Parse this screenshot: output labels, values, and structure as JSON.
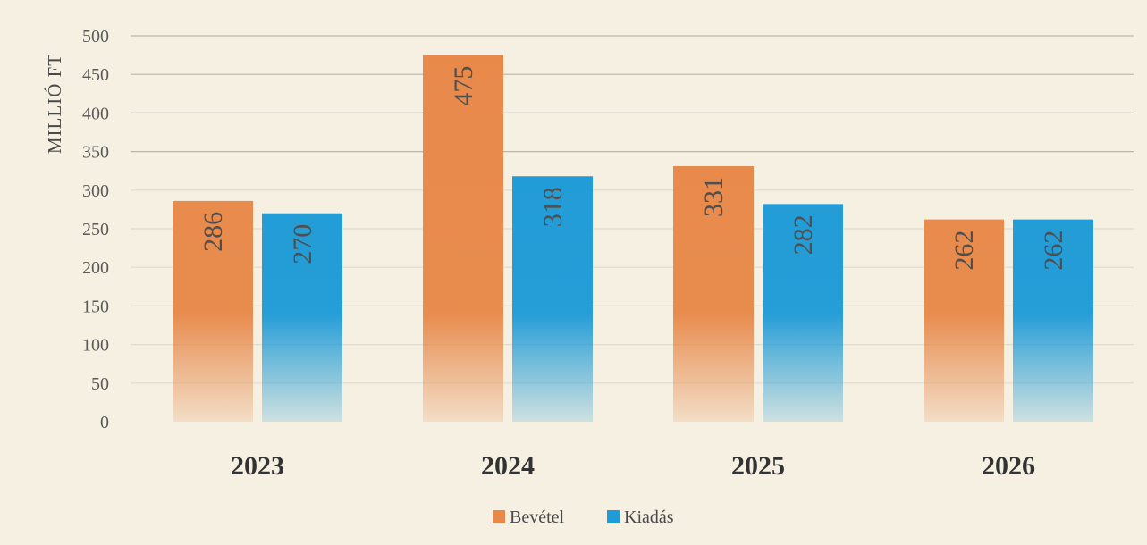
{
  "chart_data": {
    "type": "bar",
    "title": "",
    "xlabel": "",
    "ylabel": "MILLIÓ FT",
    "categories": [
      "2023",
      "2024",
      "2025",
      "2026"
    ],
    "series": [
      {
        "name": "Bevétel",
        "values": [
          286,
          475,
          331,
          262
        ],
        "color": "#e8894a"
      },
      {
        "name": "Kiadás",
        "values": [
          270,
          318,
          282,
          262
        ],
        "color": "#1f9bd7"
      }
    ],
    "ylim": [
      0,
      500
    ],
    "yticks": [
      0,
      50,
      100,
      150,
      200,
      250,
      300,
      350,
      400,
      450,
      500
    ],
    "grid": true,
    "legend": "bottom-center",
    "data_labels": true
  }
}
